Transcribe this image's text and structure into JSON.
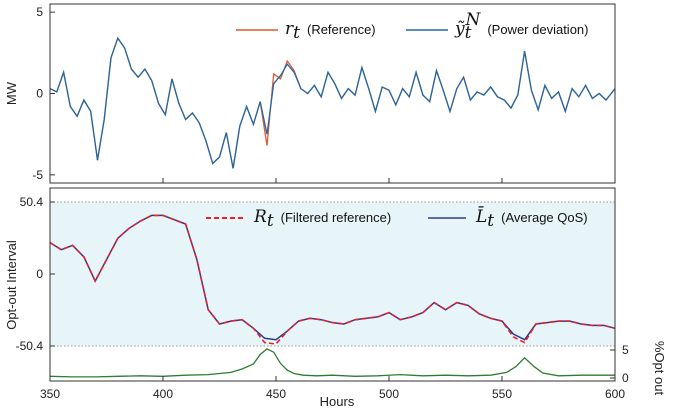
{
  "colors": {
    "reference": "#e4572e",
    "power_deviation": "#1f6aa5",
    "filtered_reference": "#e8202a",
    "average_qos": "#2b3c8f",
    "opt_out": "#2e7d32",
    "band_fill": "#e7f4f8"
  },
  "chart_data": [
    {
      "type": "line",
      "ylabel": "MW",
      "xlim": [
        350,
        600
      ],
      "ylim": [
        -5.5,
        5.5
      ],
      "yticks": [
        "5",
        "0",
        "-5"
      ],
      "legend": "top-right",
      "series": [
        {
          "name_math": "r",
          "name_sub": "t",
          "name_text": "(Reference)",
          "x": [
            350,
            353,
            356,
            359,
            362,
            365,
            368,
            371,
            374,
            377,
            380,
            383,
            386,
            389,
            392,
            395,
            398,
            401,
            404,
            407,
            410,
            413,
            416,
            419,
            422,
            425,
            428,
            431,
            434,
            437,
            440,
            443,
            446,
            449,
            452,
            455,
            458,
            461,
            464,
            467,
            470,
            473,
            476,
            479,
            482,
            485,
            488,
            491,
            494,
            497,
            500,
            503,
            506,
            509,
            512,
            515,
            518,
            521,
            524,
            527,
            530,
            533,
            536,
            539,
            542,
            545,
            548,
            551,
            554,
            557,
            560,
            563,
            566,
            569,
            572,
            575,
            578,
            581,
            584,
            587,
            590,
            593,
            596,
            600
          ],
          "y": [
            0.3,
            0.1,
            1.3,
            -0.8,
            -1.4,
            -0.4,
            -1.1,
            -4.1,
            -1.6,
            2.2,
            3.4,
            2.8,
            1.5,
            1.0,
            1.5,
            0.8,
            -0.6,
            -1.3,
            0.9,
            -0.6,
            -1.6,
            -1.2,
            -1.8,
            -2.9,
            -4.3,
            -3.9,
            -2.4,
            -4.6,
            -2.0,
            -0.8,
            -1.9,
            -0.5,
            -3.2,
            1.2,
            0.9,
            2.0,
            1.4,
            0.3,
            0.0,
            0.5,
            -0.2,
            1.3,
            0.6,
            -0.3,
            0.3,
            -0.1,
            1.6,
            0.3,
            -1.1,
            0.4,
            0.2,
            -0.7,
            0.3,
            -0.2,
            1.3,
            -0.1,
            -0.5,
            1.4,
            0.2,
            -1.1,
            0.3,
            1.0,
            -0.4,
            0.1,
            -0.1,
            0.4,
            -0.2,
            -0.4,
            -0.9,
            -0.1,
            2.6,
            0.2,
            -1.0,
            0.5,
            -0.3,
            0.1,
            -1.1,
            0.3,
            -0.2,
            0.5,
            -0.3,
            0.0,
            -0.4,
            0.3
          ]
        },
        {
          "name_math": "ỹ",
          "name_sub": "t",
          "name_sup": "N",
          "name_text": "(Power deviation)",
          "x": [
            350,
            353,
            356,
            359,
            362,
            365,
            368,
            371,
            374,
            377,
            380,
            383,
            386,
            389,
            392,
            395,
            398,
            401,
            404,
            407,
            410,
            413,
            416,
            419,
            422,
            425,
            428,
            431,
            434,
            437,
            440,
            443,
            446,
            449,
            452,
            455,
            458,
            461,
            464,
            467,
            470,
            473,
            476,
            479,
            482,
            485,
            488,
            491,
            494,
            497,
            500,
            503,
            506,
            509,
            512,
            515,
            518,
            521,
            524,
            527,
            530,
            533,
            536,
            539,
            542,
            545,
            548,
            551,
            554,
            557,
            560,
            563,
            566,
            569,
            572,
            575,
            578,
            581,
            584,
            587,
            590,
            593,
            596,
            600
          ],
          "y": [
            0.3,
            0.1,
            1.3,
            -0.8,
            -1.4,
            -0.4,
            -1.1,
            -4.1,
            -1.6,
            2.2,
            3.4,
            2.8,
            1.5,
            1.0,
            1.5,
            0.8,
            -0.6,
            -1.3,
            0.9,
            -0.6,
            -1.6,
            -1.2,
            -1.8,
            -2.9,
            -4.3,
            -3.9,
            -2.4,
            -4.6,
            -2.0,
            -0.8,
            -1.9,
            -0.5,
            -2.5,
            0.6,
            1.1,
            1.8,
            1.3,
            0.3,
            0.0,
            0.5,
            -0.2,
            1.3,
            0.6,
            -0.3,
            0.3,
            -0.1,
            1.6,
            0.3,
            -1.1,
            0.4,
            0.2,
            -0.7,
            0.3,
            -0.2,
            1.3,
            -0.1,
            -0.5,
            1.4,
            0.2,
            -1.1,
            0.3,
            1.0,
            -0.4,
            0.1,
            -0.1,
            0.4,
            -0.2,
            -0.4,
            -0.9,
            -0.1,
            2.6,
            0.2,
            -1.0,
            0.5,
            -0.3,
            0.1,
            -1.1,
            0.3,
            -0.2,
            0.5,
            -0.3,
            0.0,
            -0.4,
            0.3
          ]
        }
      ]
    },
    {
      "type": "line",
      "xlabel": "Hours",
      "ylabel": "Opt-out Interval",
      "y2label": "%Opt out",
      "xlim": [
        350,
        600
      ],
      "xticks": [
        "350",
        "400",
        "450",
        "500",
        "550",
        "600"
      ],
      "yticks": [
        "50.4",
        "0",
        "-50.4"
      ],
      "y2ticks": [
        "5",
        "0"
      ],
      "ylim_band": [
        -50.4,
        50.4
      ],
      "band": "shaded region between -50.4 and 50.4",
      "legend": "top-right",
      "series": [
        {
          "name_math": "R",
          "name_sub": "t",
          "name_text": "(Filtered reference)",
          "style": "dashed",
          "x": [
            350,
            355,
            360,
            365,
            370,
            375,
            380,
            385,
            390,
            395,
            400,
            405,
            410,
            415,
            420,
            425,
            430,
            435,
            440,
            445,
            450,
            455,
            460,
            465,
            470,
            475,
            480,
            485,
            490,
            495,
            500,
            505,
            510,
            515,
            520,
            525,
            530,
            535,
            540,
            545,
            550,
            555,
            560,
            565,
            570,
            575,
            580,
            585,
            590,
            595,
            600
          ],
          "y": [
            22,
            17,
            20,
            12,
            -5,
            10,
            25,
            32,
            37,
            41,
            41,
            38,
            35,
            10,
            -25,
            -35,
            -33,
            -32,
            -38,
            -48,
            -49,
            -40,
            -33,
            -31,
            -32,
            -34,
            -35,
            -32,
            -31,
            -30,
            -27,
            -32,
            -30,
            -27,
            -20,
            -25,
            -20,
            -22,
            -28,
            -31,
            -33,
            -44,
            -48,
            -35,
            -34,
            -33,
            -33,
            -35,
            -36,
            -36,
            -38
          ]
        },
        {
          "name_math": "L̄",
          "name_sub": "t",
          "name_text": "(Average QoS)",
          "style": "solid",
          "x": [
            350,
            355,
            360,
            365,
            370,
            375,
            380,
            385,
            390,
            395,
            400,
            405,
            410,
            415,
            420,
            425,
            430,
            435,
            440,
            445,
            450,
            455,
            460,
            465,
            470,
            475,
            480,
            485,
            490,
            495,
            500,
            505,
            510,
            515,
            520,
            525,
            530,
            535,
            540,
            545,
            550,
            555,
            560,
            565,
            570,
            575,
            580,
            585,
            590,
            595,
            600
          ],
          "y": [
            22,
            17,
            20,
            12,
            -5,
            10,
            25,
            32,
            37,
            41,
            41,
            38,
            35,
            10,
            -25,
            -35,
            -33,
            -32,
            -38,
            -45,
            -46,
            -40,
            -33,
            -31,
            -32,
            -34,
            -35,
            -32,
            -31,
            -30,
            -27,
            -32,
            -30,
            -27,
            -20,
            -25,
            -20,
            -22,
            -28,
            -31,
            -33,
            -42,
            -46,
            -35,
            -34,
            -33,
            -33,
            -35,
            -36,
            -36,
            -38
          ]
        },
        {
          "name": "%Opt out",
          "axis": "right",
          "style": "solid",
          "x": [
            350,
            360,
            370,
            380,
            390,
            400,
            410,
            420,
            430,
            435,
            440,
            443,
            446,
            449,
            452,
            455,
            458,
            462,
            468,
            475,
            485,
            495,
            505,
            515,
            525,
            535,
            545,
            552,
            556,
            560,
            564,
            568,
            575,
            585,
            600
          ],
          "y": [
            0.3,
            0.2,
            0.2,
            0.3,
            0.4,
            0.3,
            0.5,
            0.6,
            1.0,
            1.6,
            2.5,
            4.2,
            5.2,
            4.6,
            2.6,
            1.4,
            0.8,
            0.5,
            0.4,
            0.5,
            0.3,
            0.4,
            0.6,
            0.4,
            0.5,
            0.4,
            0.5,
            1.0,
            2.0,
            3.6,
            2.1,
            0.9,
            0.4,
            0.5,
            0.5
          ]
        }
      ]
    }
  ]
}
